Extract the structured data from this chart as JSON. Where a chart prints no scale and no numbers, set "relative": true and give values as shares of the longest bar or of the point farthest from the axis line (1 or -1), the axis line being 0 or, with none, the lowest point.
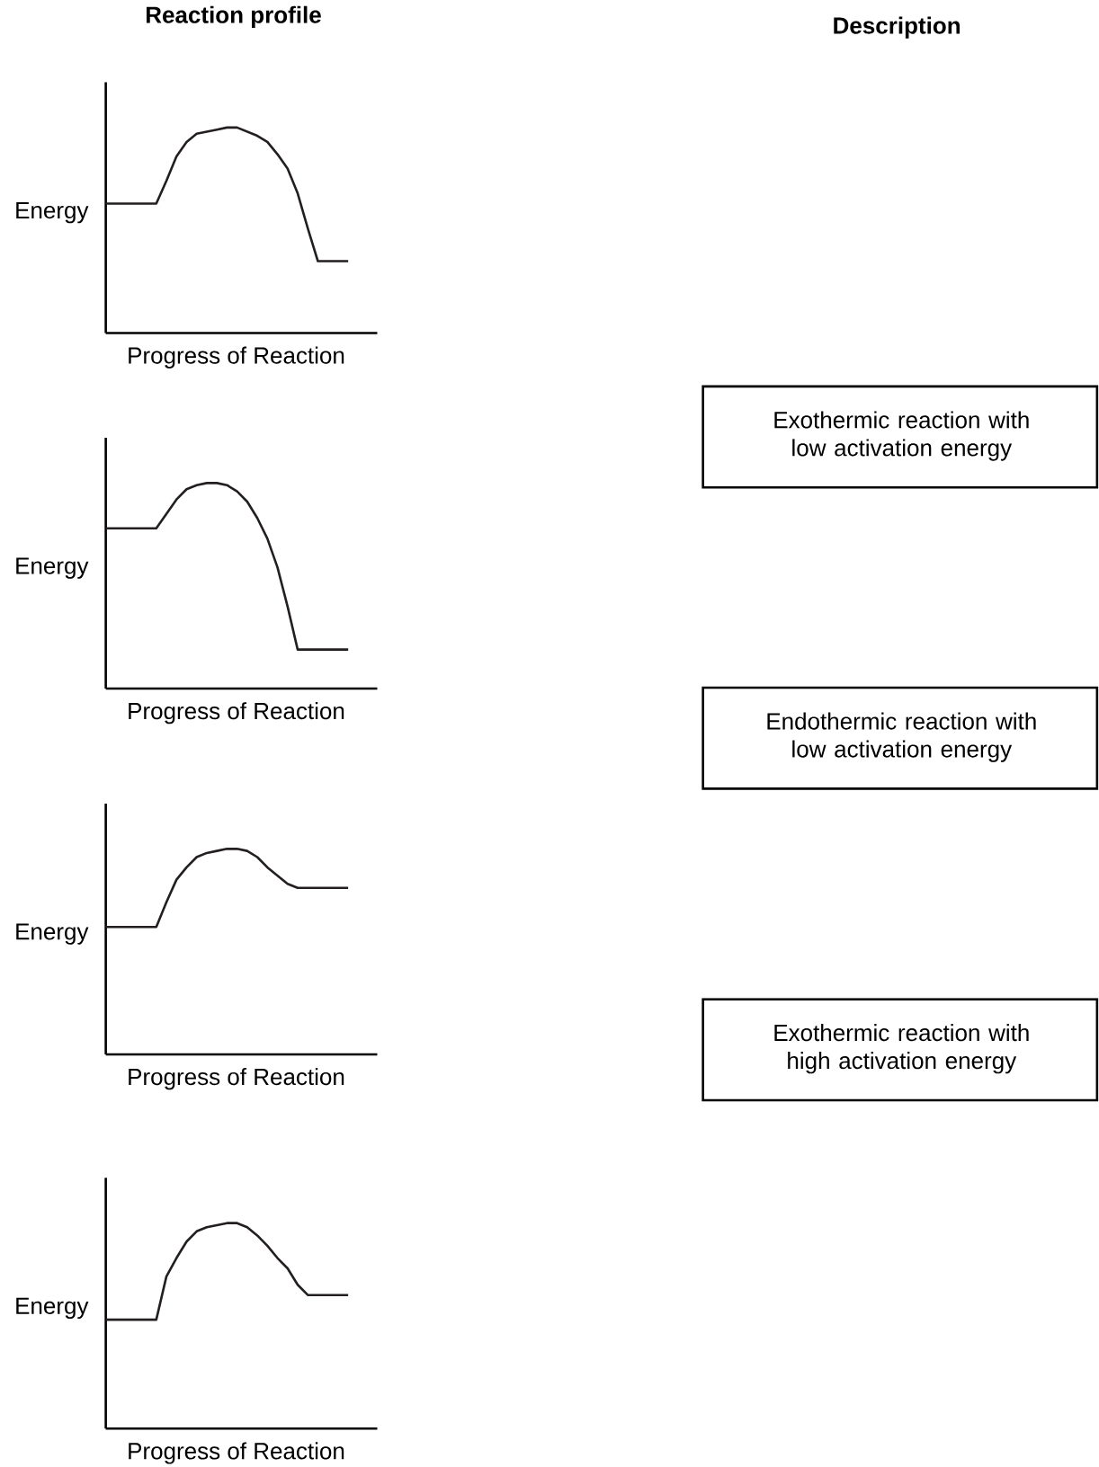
{
  "chart_data": [
    {
      "type": "line",
      "title": "Reaction profile",
      "xlabel": "Progress of Reaction",
      "ylabel": "Energy",
      "relative": true,
      "categories": [
        null,
        null,
        null,
        null,
        null,
        null,
        null,
        null,
        null,
        null,
        null,
        null,
        null,
        null,
        null,
        null,
        null,
        null,
        null,
        null,
        null,
        null,
        null,
        null,
        null
      ],
      "series": [
        {
          "color": "#231f20",
          "values": [
            0.63,
            0.63,
            0.63,
            0.63,
            0.63,
            0.63,
            0.74,
            0.86,
            0.93,
            0.97,
            0.98,
            0.99,
            1,
            1,
            0.98,
            0.96,
            0.93,
            0.87,
            0.8,
            0.68,
            0.51,
            0.35,
            0.35,
            0.35,
            0.35
          ]
        }
      ]
    },
    {
      "type": "line",
      "xlabel": "Progress of Reaction",
      "ylabel": "Energy",
      "relative": true,
      "categories": [
        null,
        null,
        null,
        null,
        null,
        null,
        null,
        null,
        null,
        null,
        null,
        null,
        null,
        null,
        null,
        null,
        null,
        null,
        null,
        null,
        null,
        null,
        null,
        null,
        null
      ],
      "series": [
        {
          "color": "#231f20",
          "values": [
            0.78,
            0.78,
            0.78,
            0.78,
            0.78,
            0.78,
            0.85,
            0.92,
            0.97,
            0.99,
            1,
            1,
            0.99,
            0.96,
            0.91,
            0.83,
            0.73,
            0.59,
            0.4,
            0.19,
            0.19,
            0.19,
            0.19,
            0.19,
            0.19
          ]
        }
      ]
    },
    {
      "type": "line",
      "xlabel": "Progress of Reaction",
      "ylabel": "Energy",
      "relative": true,
      "categories": [
        null,
        null,
        null,
        null,
        null,
        null,
        null,
        null,
        null,
        null,
        null,
        null,
        null,
        null,
        null,
        null,
        null,
        null,
        null,
        null,
        null,
        null,
        null,
        null,
        null
      ],
      "series": [
        {
          "color": "#231f20",
          "values": [
            0.62,
            0.62,
            0.62,
            0.62,
            0.62,
            0.62,
            0.74,
            0.85,
            0.91,
            0.96,
            0.98,
            0.99,
            1,
            1,
            0.99,
            0.96,
            0.91,
            0.87,
            0.83,
            0.81,
            0.81,
            0.81,
            0.81,
            0.81,
            0.81
          ]
        }
      ]
    },
    {
      "type": "line",
      "xlabel": "Progress of Reaction",
      "ylabel": "Energy",
      "relative": true,
      "categories": [
        null,
        null,
        null,
        null,
        null,
        null,
        null,
        null,
        null,
        null,
        null,
        null,
        null,
        null,
        null,
        null,
        null,
        null,
        null,
        null,
        null,
        null,
        null,
        null,
        null
      ],
      "series": [
        {
          "color": "#231f20",
          "values": [
            0.53,
            0.53,
            0.53,
            0.53,
            0.53,
            0.53,
            0.74,
            0.83,
            0.91,
            0.96,
            0.98,
            0.99,
            1,
            1,
            0.98,
            0.94,
            0.89,
            0.83,
            0.78,
            0.7,
            0.65,
            0.65,
            0.65,
            0.65,
            0.65
          ]
        }
      ]
    },
    {
      "type": "other",
      "title": "Description",
      "annotations": [
        "Exothermic reaction with low activation energy",
        "Endothermic reaction with low activation energy",
        "Exothermic reaction with high activation energy"
      ]
    }
  ]
}
